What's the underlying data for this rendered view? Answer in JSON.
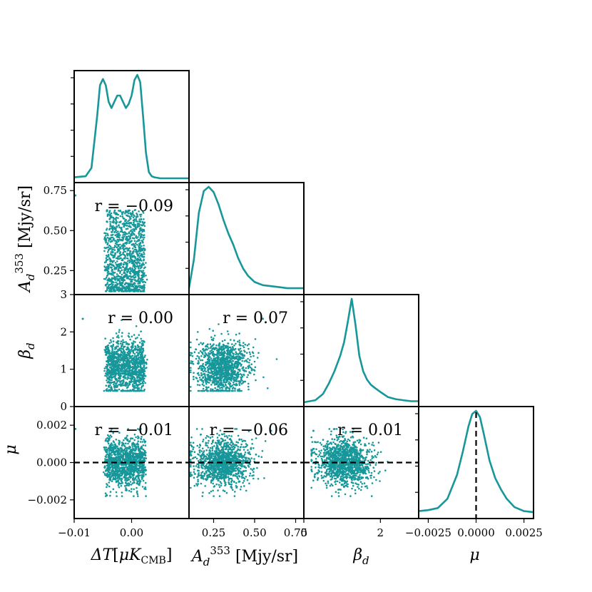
{
  "accent_color": "#17979a",
  "chart_data": {
    "type": "corner",
    "parameters": [
      {
        "key": "dT",
        "label": "ΔT[μK_CMB]",
        "range": [
          -0.01,
          0.01
        ],
        "ticks": [
          -0.01,
          0.0
        ],
        "tick_labels": [
          "−0.01",
          "0.00"
        ]
      },
      {
        "key": "Ad",
        "label": "A_d^353 [Mjy/sr]",
        "range": [
          0.1,
          0.8
        ],
        "ticks": [
          0.25,
          0.5,
          0.75
        ],
        "tick_labels": [
          "0.25",
          "0.50",
          "0.75"
        ]
      },
      {
        "key": "beta",
        "label": "β_d",
        "range": [
          0,
          3
        ],
        "ticks": [
          0,
          1,
          2,
          3
        ],
        "tick_labels": [
          "0",
          "1",
          "2",
          "3"
        ]
      },
      {
        "key": "mu",
        "label": "μ",
        "range": [
          -0.003,
          0.003
        ],
        "ticks": [
          -0.0025,
          0.0,
          0.0025
        ],
        "tick_labels": [
          "−0.0025",
          "0.0000",
          "0.0025"
        ]
      }
    ],
    "axis_text": {
      "dT": {
        "sym": "ΔT",
        "open": "[",
        "mu": "μ",
        "K": "K",
        "sub": "CMB",
        "close": "]"
      },
      "Ad": {
        "sym": "A",
        "sub": "d",
        "sup": "353",
        "unit": "[Mjy/sr]"
      },
      "beta": {
        "sym": "β",
        "sub": "d"
      },
      "mu": {
        "sym": "μ"
      }
    },
    "row_ticks": {
      "Ad": {
        "ticks": [
          0.25,
          0.5,
          0.75
        ],
        "labels": [
          "0.25",
          "0.50",
          "0.75"
        ]
      },
      "beta": {
        "ticks": [
          0,
          1,
          2,
          3
        ],
        "labels": [
          "0",
          "1",
          "2",
          "3"
        ]
      },
      "mu": {
        "ticks": [
          -0.002,
          0.0,
          0.002
        ],
        "labels": [
          "−0.002",
          "0.000",
          "0.002"
        ]
      }
    },
    "bottom_ticks": {
      "dT": {
        "ticks": [
          -0.01,
          0.0
        ],
        "labels": [
          "−0.01",
          "0.00"
        ]
      },
      "Ad": {
        "ticks": [
          0.25,
          0.5,
          0.75
        ],
        "labels": [
          "0.25",
          "0.50",
          "0.75"
        ]
      },
      "beta": {
        "ticks": [
          0,
          2
        ],
        "labels": [
          "0",
          "2"
        ]
      },
      "mu": {
        "ticks": [
          -0.0025,
          0.0,
          0.0025
        ],
        "labels": [
          "−0.0025",
          "0.0000",
          "0.0025"
        ]
      }
    },
    "marginals": [
      {
        "param": "dT",
        "x": [
          -0.01,
          -0.008,
          -0.007,
          -0.006,
          -0.0055,
          -0.005,
          -0.0045,
          -0.004,
          -0.0035,
          -0.003,
          -0.0025,
          -0.002,
          -0.0015,
          -0.001,
          -0.0005,
          0.0,
          0.0005,
          0.001,
          0.0015,
          0.002,
          0.0025,
          0.003,
          0.0035,
          0.004,
          0.005,
          0.006,
          0.008,
          0.01
        ],
        "density": [
          0.01,
          0.02,
          0.1,
          0.6,
          0.9,
          0.96,
          0.9,
          0.74,
          0.68,
          0.74,
          0.8,
          0.8,
          0.74,
          0.68,
          0.72,
          0.8,
          0.95,
          1.0,
          0.93,
          0.6,
          0.25,
          0.06,
          0.02,
          0.01,
          0.0,
          0.0,
          0.0,
          0.0
        ]
      },
      {
        "param": "Ad",
        "x": [
          0.1,
          0.13,
          0.16,
          0.19,
          0.22,
          0.25,
          0.28,
          0.31,
          0.34,
          0.37,
          0.4,
          0.43,
          0.46,
          0.5,
          0.55,
          0.6,
          0.65,
          0.7,
          0.8
        ],
        "density": [
          0.02,
          0.3,
          0.75,
          0.96,
          1.0,
          0.95,
          0.83,
          0.68,
          0.55,
          0.44,
          0.31,
          0.21,
          0.14,
          0.08,
          0.05,
          0.04,
          0.03,
          0.02,
          0.02
        ]
      },
      {
        "param": "beta",
        "x": [
          0,
          0.3,
          0.5,
          0.65,
          0.8,
          0.95,
          1.05,
          1.15,
          1.25,
          1.35,
          1.45,
          1.55,
          1.65,
          1.75,
          1.85,
          2.0,
          2.2,
          2.4,
          2.6,
          2.8,
          3.0
        ],
        "density": [
          0.0,
          0.02,
          0.08,
          0.18,
          0.3,
          0.45,
          0.58,
          0.78,
          1.0,
          0.75,
          0.45,
          0.3,
          0.22,
          0.17,
          0.14,
          0.1,
          0.05,
          0.03,
          0.02,
          0.01,
          0.01
        ]
      },
      {
        "param": "mu",
        "x": [
          -0.003,
          -0.0025,
          -0.002,
          -0.0015,
          -0.001,
          -0.0007,
          -0.0004,
          -0.0002,
          0.0,
          0.0002,
          0.0004,
          0.0007,
          0.001,
          0.0013,
          0.0016,
          0.002,
          0.0025,
          0.003
        ],
        "density": [
          0.03,
          0.04,
          0.06,
          0.15,
          0.38,
          0.6,
          0.85,
          0.97,
          1.0,
          0.94,
          0.78,
          0.52,
          0.35,
          0.24,
          0.15,
          0.07,
          0.03,
          0.02
        ]
      }
    ],
    "scatter_panels": [
      {
        "x": "dT",
        "y": "Ad",
        "r_label": "r = −0.09",
        "x_center": -0.0005,
        "x_spread": 0.0025,
        "y_center": 0.28,
        "y_spread": 0.1,
        "y_min": 0.12,
        "y_max": 0.63,
        "outlier": [
          -0.0098,
          0.72
        ]
      },
      {
        "x": "dT",
        "y": "beta",
        "r_label": "r = 0.00",
        "x_center": -0.0005,
        "x_spread": 0.0025,
        "y_center": 1.05,
        "y_spread": 0.35,
        "y_min": 0.42,
        "y_max": 2.4,
        "outlier": [
          -0.0085,
          2.35
        ]
      },
      {
        "x": "Ad",
        "y": "beta",
        "r_label": "r = 0.07",
        "x_center": 0.28,
        "x_spread": 0.1,
        "y_center": 1.05,
        "y_spread": 0.35,
        "y_min": 0.42,
        "y_max": 2.4,
        "outlier": [
          0.55,
          2.35
        ]
      },
      {
        "x": "dT",
        "y": "mu",
        "r_label": "r = −0.01",
        "x_center": -0.0005,
        "x_spread": 0.0025,
        "y_center": 0.0,
        "y_spread": 0.00065,
        "y_min": -0.0018,
        "y_max": 0.0018,
        "outlier": [
          -0.0098,
          0.0018
        ]
      },
      {
        "x": "Ad",
        "y": "mu",
        "r_label": "r = −0.06",
        "x_center": 0.28,
        "x_spread": 0.1,
        "y_center": 0.0,
        "y_spread": 0.00065,
        "y_min": -0.0018,
        "y_max": 0.0018,
        "outlier": [
          0.6,
          0.0017
        ]
      },
      {
        "x": "beta",
        "y": "mu",
        "r_label": "r = 0.01",
        "x_center": 1.05,
        "x_spread": 0.35,
        "y_center": 0.0,
        "y_spread": 0.00065,
        "y_min": -0.0018,
        "y_max": 0.0018,
        "outlier": [
          0.25,
          0.0017
        ]
      }
    ],
    "reference_lines": [
      {
        "param": "mu",
        "value": 0.0,
        "style": "dashed",
        "color": "#000000"
      }
    ],
    "samples_per_panel": 1200
  }
}
